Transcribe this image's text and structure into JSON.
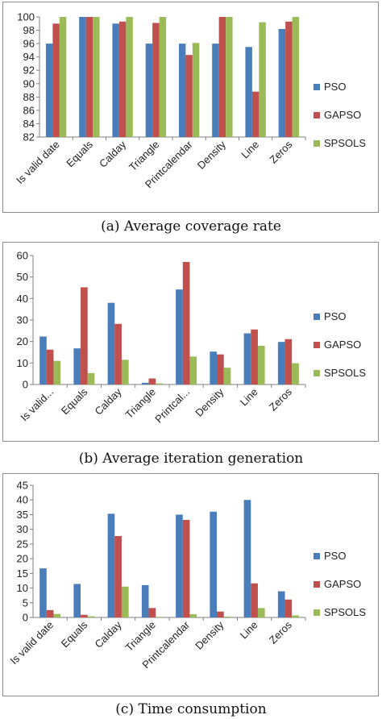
{
  "colors": {
    "PSO": "#4a7ebb",
    "GAPSO": "#c0504d",
    "SPSOLS": "#9bbb59"
  },
  "chart_data": [
    {
      "type": "bar",
      "caption": "(a) Average coverage rate",
      "categories": [
        "Is valid date",
        "Equals",
        "Calday",
        "Triangle",
        "Printcalendar",
        "Density",
        "Line",
        "Zeros"
      ],
      "series": [
        {
          "name": "PSO",
          "values": [
            96,
            100,
            99,
            96,
            96,
            96,
            95.5,
            98.2
          ]
        },
        {
          "name": "GAPSO",
          "values": [
            99,
            100,
            99.3,
            99.1,
            94.3,
            100,
            88.8,
            99.3
          ]
        },
        {
          "name": "SPSOLS",
          "values": [
            100,
            100,
            100,
            100,
            96.1,
            100,
            99.2,
            100
          ]
        }
      ],
      "ylim": [
        82,
        100
      ],
      "yticks": [
        "82",
        "84",
        "86",
        "88",
        "90",
        "92",
        "94",
        "96",
        "98",
        "100"
      ],
      "grid": false,
      "legend": "right"
    },
    {
      "type": "bar",
      "caption": "(b) Average iteration generation",
      "categories": [
        "Is valid...",
        "Equals",
        "Calday",
        "Triangle",
        "Printcal...",
        "Density",
        "Line",
        "Zeros"
      ],
      "series": [
        {
          "name": "PSO",
          "values": [
            22.3,
            16.8,
            38,
            0.8,
            44.2,
            15.3,
            23.8,
            19.8
          ]
        },
        {
          "name": "GAPSO",
          "values": [
            16.2,
            45.2,
            28.2,
            2.8,
            57,
            14,
            25.6,
            21.1
          ]
        },
        {
          "name": "SPSOLS",
          "values": [
            11,
            5.3,
            11.5,
            0.5,
            13,
            7.8,
            18,
            9.9
          ]
        }
      ],
      "ylim": [
        0,
        60
      ],
      "yticks": [
        "0",
        "10",
        "20",
        "30",
        "40",
        "50",
        "60"
      ],
      "grid": false,
      "legend": "right"
    },
    {
      "type": "bar",
      "caption": "(c) Time consumption",
      "categories": [
        "Is valid date",
        "Equals",
        "Calday",
        "Triangle",
        "Printcalendar",
        "Density",
        "Line",
        "Zeros"
      ],
      "series": [
        {
          "name": "PSO",
          "values": [
            16.7,
            11.4,
            35.3,
            11,
            35,
            36,
            40,
            8.9
          ]
        },
        {
          "name": "GAPSO",
          "values": [
            2.5,
            0.9,
            27.7,
            3.2,
            33.2,
            2,
            11.6,
            6.1
          ]
        },
        {
          "name": "SPSOLS",
          "values": [
            1.2,
            0.4,
            10.5,
            0.2,
            1.1,
            0.3,
            3.2,
            0.7
          ]
        }
      ],
      "ylim": [
        0,
        45
      ],
      "yticks": [
        "0",
        "5",
        "10",
        "15",
        "20",
        "25",
        "30",
        "35",
        "40",
        "45"
      ],
      "grid": false,
      "legend": "right"
    }
  ]
}
